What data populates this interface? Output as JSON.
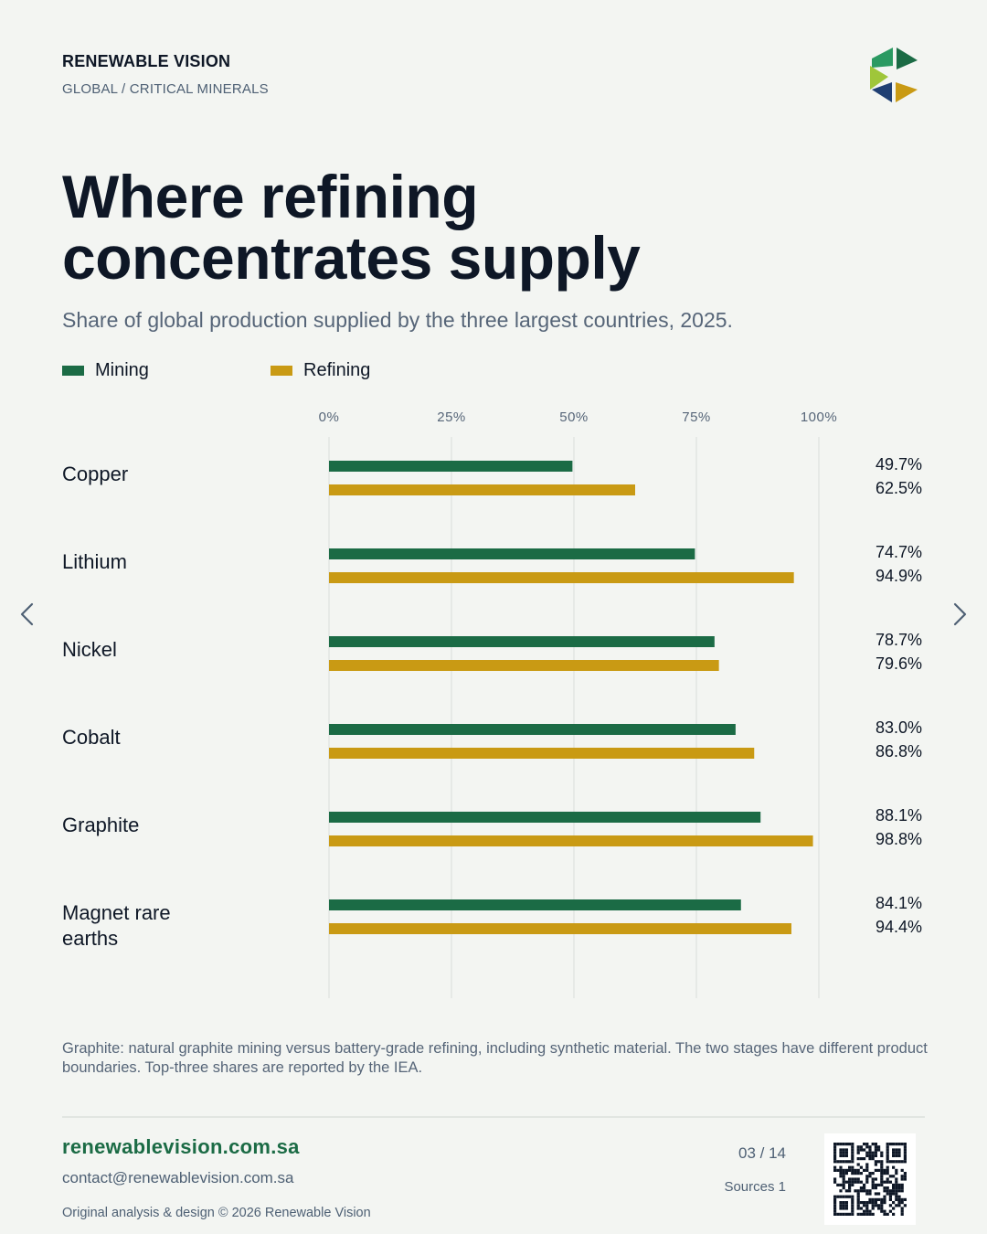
{
  "header": {
    "brand": "RENEWABLE VISION",
    "section": "GLOBAL / CRITICAL MINERALS"
  },
  "title_line1": "Where refining",
  "title_line2": "concentrates supply",
  "subtitle": "Share of global production supplied by the three largest countries, 2025.",
  "legend": {
    "mining": "Mining",
    "refining": "Refining"
  },
  "colors": {
    "mining": "#1b6b45",
    "refining": "#c99a14",
    "background": "#f3f5f2",
    "grid": "#e2e5e2"
  },
  "chart_data": {
    "type": "bar",
    "orientation": "horizontal",
    "categories": [
      "Copper",
      "Lithium",
      "Nickel",
      "Cobalt",
      "Graphite",
      "Magnet rare earths"
    ],
    "series": [
      {
        "name": "Mining",
        "values": [
          49.7,
          74.7,
          78.7,
          83.0,
          88.1,
          84.1
        ]
      },
      {
        "name": "Refining",
        "values": [
          62.5,
          94.9,
          79.6,
          86.8,
          98.8,
          94.4
        ]
      }
    ],
    "value_labels": {
      "Mining": [
        "49.7%",
        "74.7%",
        "78.7%",
        "83.0%",
        "88.1%",
        "84.1%"
      ],
      "Refining": [
        "62.5%",
        "94.9%",
        "79.6%",
        "86.8%",
        "98.8%",
        "94.4%"
      ]
    },
    "xticks": [
      "0%",
      "25%",
      "50%",
      "75%",
      "100%"
    ],
    "xtick_values": [
      0,
      25,
      50,
      75,
      100
    ],
    "xlim": [
      0,
      100
    ],
    "grid": true,
    "legend_position": "top-left",
    "title": "Where refining concentrates supply",
    "subtitle": "Share of global production supplied by the three largest countries, 2025."
  },
  "footnote": "Graphite: natural graphite mining versus battery-grade refining, including synthetic material. The two stages have different product boundaries. Top-three shares are reported by the IEA.",
  "footer": {
    "website": "renewablevision.com.sa",
    "email": "contact@renewablevision.com.sa",
    "credit": "Original analysis & design © 2026 Renewable Vision",
    "page": "03 / 14",
    "sources": "Sources 1"
  },
  "nav": {
    "prev_icon": "chevron-left-icon",
    "next_icon": "chevron-right-icon"
  }
}
